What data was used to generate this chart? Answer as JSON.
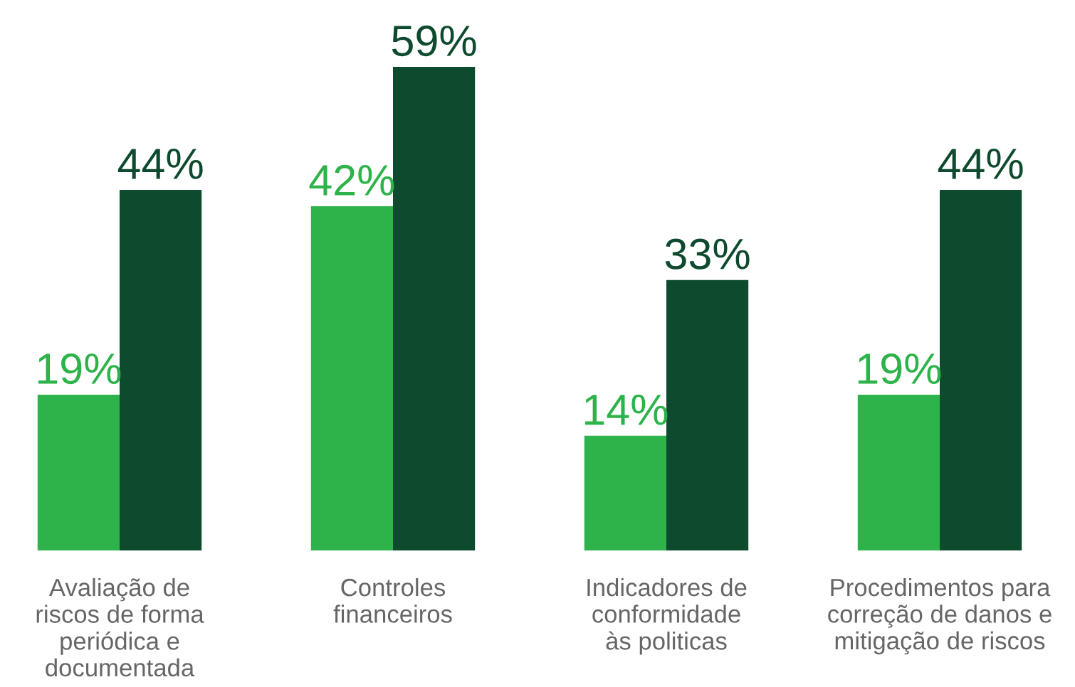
{
  "chart_data": {
    "type": "bar",
    "categories": [
      "Avaliação de\nriscos de forma\nperiódica e\ndocumentada",
      "Controles\nfinanceiros",
      "Indicadores de\nconformidade\nàs politicas",
      "Procedimentos para\ncorreção de danos e\nmitigação de riscos"
    ],
    "series": [
      {
        "color": "#2db34a",
        "values": [
          19,
          42,
          14,
          19
        ],
        "value_labels": [
          "19%",
          "42%",
          "14%",
          "19%"
        ]
      },
      {
        "color": "#0e4a2e",
        "values": [
          44,
          59,
          33,
          44
        ],
        "value_labels": [
          "44%",
          "59%",
          "33%",
          "44%"
        ]
      }
    ],
    "legend": false,
    "grid": false
  }
}
